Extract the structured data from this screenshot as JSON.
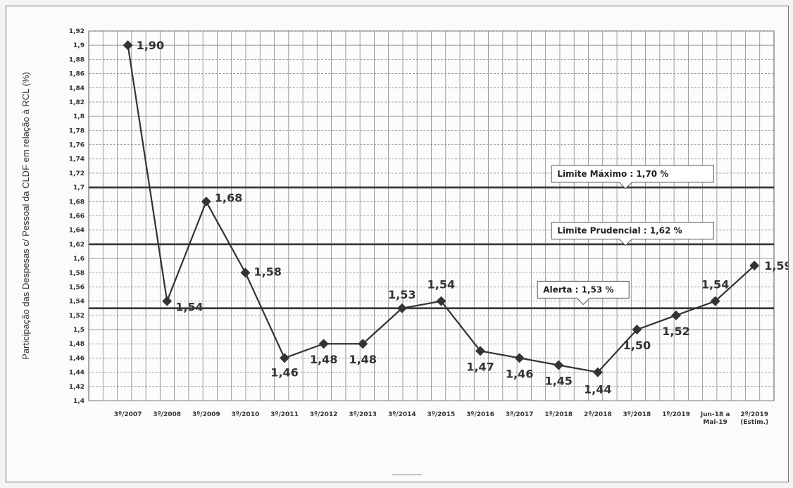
{
  "chart_data": {
    "type": "line",
    "ylabel": "Participação das Despesas c/ Pessoal da CLDF em relação à RCL  (%)",
    "ylim": [
      1.4,
      1.92
    ],
    "ytick_step": 0.02,
    "grid": true,
    "series_color": "#333333",
    "categories": [
      "3º/2007",
      "3º/2008",
      "3º/2009",
      "3º/2010",
      "3º/2011",
      "3º/2012",
      "3º/2013",
      "3º/2014",
      "3º/2015",
      "3º/2016",
      "3º/2017",
      "1º/2018",
      "2º/2018",
      "3º/2018",
      "1º/2019",
      "Jun-18 a Mai-19",
      "2º/2019 (Estim.)"
    ],
    "values": [
      1.9,
      1.54,
      1.68,
      1.58,
      1.46,
      1.48,
      1.48,
      1.53,
      1.54,
      1.47,
      1.46,
      1.45,
      1.44,
      1.5,
      1.52,
      1.54,
      1.59
    ],
    "data_labels": [
      "1,90",
      "1,54",
      "1,68",
      "1,58",
      "1,46",
      "1,48",
      "1,48",
      "1,53",
      "1,54",
      "1,47",
      "1,46",
      "1,45",
      "1,44",
      "1,50",
      "1,52",
      "1,54",
      "1,59"
    ],
    "reference_lines": [
      {
        "value": 1.7,
        "label": "Limite Máximo : 1,70 %"
      },
      {
        "value": 1.62,
        "label": "Limite Prudencial : 1,62 %"
      },
      {
        "value": 1.53,
        "label": "Alerta : 1,53 %"
      }
    ]
  }
}
